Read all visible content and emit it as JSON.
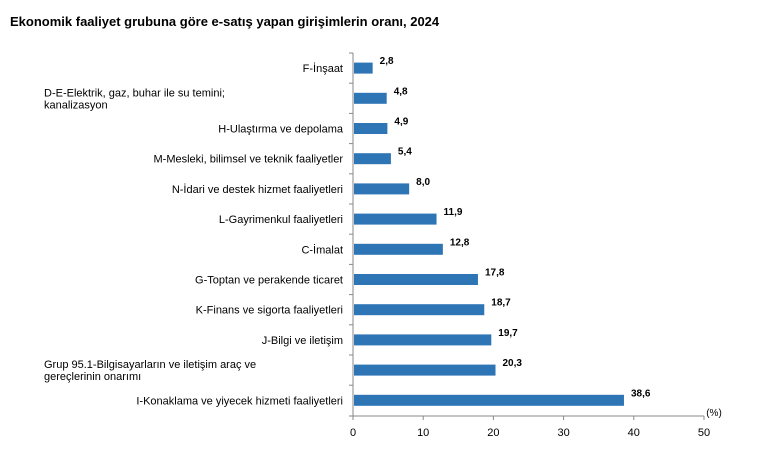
{
  "chart_data": {
    "type": "bar",
    "orientation": "horizontal",
    "title": "Ekonomik faaliyet grubuna göre e-satış yapan girişimlerin oranı, 2024",
    "xlabel": "(%)",
    "categories": [
      "F-İnşaat",
      "D-E-Elektrik, gaz, buhar ile su temini; kanalizasyon",
      "H-Ulaştırma ve depolama",
      "M-Mesleki, bilimsel ve teknik faaliyetler",
      "N-İdari ve destek hizmet faaliyetleri",
      "L-Gayrimenkul faaliyetleri",
      "C-İmalat",
      "G-Toptan ve perakende ticaret",
      "K-Finans ve sigorta faaliyetleri",
      "J-Bilgi ve iletişim",
      "Grup 95.1-Bilgisayarların ve iletişim araç ve gereçlerinin onarımı",
      "I-Konaklama ve yiyecek hizmeti faaliyetleri"
    ],
    "values": [
      2.8,
      4.8,
      4.9,
      5.4,
      8.0,
      11.9,
      12.8,
      17.8,
      18.7,
      19.7,
      20.3,
      38.6
    ],
    "value_labels": [
      "2,8",
      "4,8",
      "4,9",
      "5,4",
      "8,0",
      "11,9",
      "12,8",
      "17,8",
      "18,7",
      "19,7",
      "20,3",
      "38,6"
    ],
    "xlim": [
      0,
      50
    ],
    "xticks": [
      0,
      10,
      20,
      30,
      40,
      50
    ],
    "bar_color": "#2e75b6",
    "grid": false
  }
}
